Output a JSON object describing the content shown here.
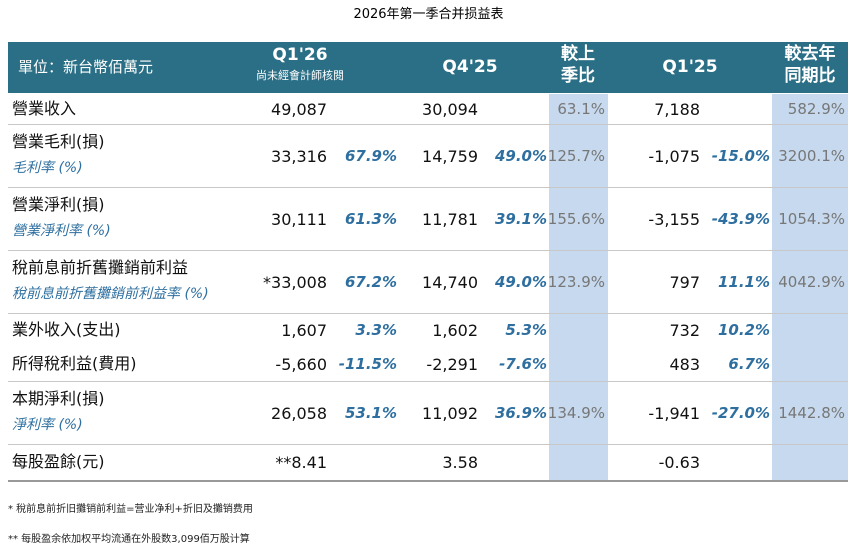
{
  "title": "2026年第一季合并损益表",
  "header": {
    "unit": "單位：新台幣佰萬元",
    "columns": [
      {
        "lines": [
          "Q1'26"
        ],
        "subtitle": "尚未經會計師核閱"
      },
      {
        "lines": [
          "Q4'25"
        ]
      },
      {
        "lines": [
          "較上",
          "季比"
        ]
      },
      {
        "lines": [
          "Q1'25"
        ]
      },
      {
        "lines": [
          "較去年",
          "同期比"
        ]
      }
    ]
  },
  "rows": [
    {
      "label": "營業收入",
      "cells": [
        "49,087",
        null,
        "30,094",
        null,
        "63.1%",
        "7,188",
        null,
        "582.9%"
      ]
    },
    {
      "label": "營業毛利(損)",
      "sublabel": "毛利率 (%)",
      "cells": [
        "33,316",
        "67.9%",
        "14,759",
        "49.0%",
        "125.7%",
        "-1,075",
        "-15.0%",
        "3200.1%"
      ]
    },
    {
      "label": "營業淨利(損)",
      "sublabel": "營業淨利率 (%)",
      "cells": [
        "30,111",
        "61.3%",
        "11,781",
        "39.1%",
        "155.6%",
        "-3,155",
        "-43.9%",
        "1054.3%"
      ]
    },
    {
      "label": "稅前息前折舊攤銷前利益",
      "sublabel": "稅前息前折舊攤銷前利益率 (%)",
      "cells": [
        "*33,008",
        "67.2%",
        "14,740",
        "49.0%",
        "123.9%",
        "797",
        "11.1%",
        "4042.9%"
      ]
    },
    {
      "label": "業外收入(支出)",
      "cells": [
        "1,607",
        "3.3%",
        "1,602",
        "5.3%",
        null,
        "732",
        "10.2%",
        null
      ]
    },
    {
      "label": "所得稅利益(費用)",
      "cells": [
        "-5,660",
        "-11.5%",
        "-2,291",
        "-7.6%",
        null,
        "483",
        "6.7%",
        null
      ]
    },
    {
      "label": "本期淨利(損)",
      "sublabel": "淨利率 (%)",
      "cells": [
        "26,058",
        "53.1%",
        "11,092",
        "36.9%",
        "134.9%",
        "-1,941",
        "-27.0%",
        "1442.8%"
      ]
    },
    {
      "label": "每股盈餘(元)",
      "cells": [
        "**8.41",
        null,
        "3.58",
        null,
        null,
        "-0.63",
        null,
        null
      ]
    }
  ],
  "footnotes": [
    "*  稅前息前折旧攤销前利益=营业净利+折旧及攤销费用",
    "**  每股盈余依加权平均流通在外股数3,099佰万股计算"
  ]
}
